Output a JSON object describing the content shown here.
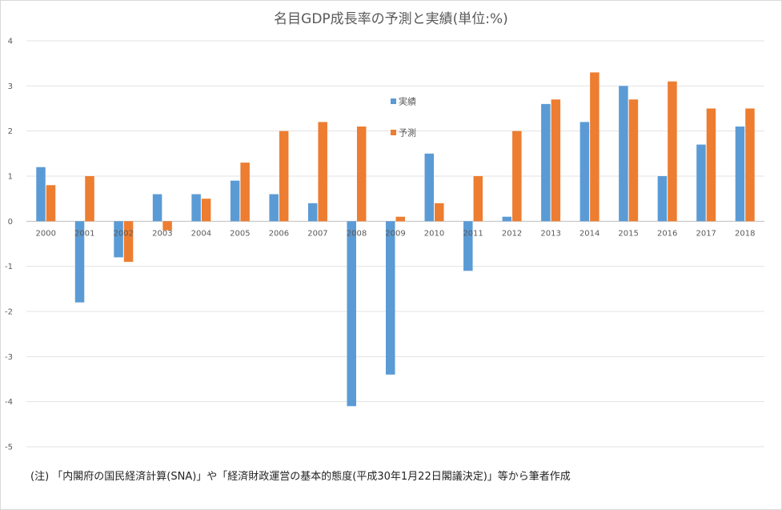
{
  "chart_data": {
    "type": "bar",
    "title": "名目GDP成長率の予測と実績(単位:%)",
    "categories": [
      "2000",
      "2001",
      "2002",
      "2003",
      "2004",
      "2005",
      "2006",
      "2007",
      "2008",
      "2009",
      "2010",
      "2011",
      "2012",
      "2013",
      "2014",
      "2015",
      "2016",
      "2017",
      "2018"
    ],
    "series": [
      {
        "name": "実績",
        "color": "#5b9bd5",
        "values": [
          1.2,
          -1.8,
          -0.8,
          0.6,
          0.6,
          0.9,
          0.6,
          0.4,
          -4.1,
          -3.4,
          1.5,
          -1.1,
          0.1,
          2.6,
          2.2,
          3.0,
          1.0,
          1.7,
          2.1
        ]
      },
      {
        "name": "予測",
        "color": "#ed7d31",
        "values": [
          0.8,
          1.0,
          -0.9,
          -0.2,
          0.5,
          1.3,
          2.0,
          2.2,
          2.1,
          0.1,
          0.4,
          1.0,
          2.0,
          2.7,
          3.3,
          2.7,
          3.1,
          2.5,
          2.5
        ]
      }
    ],
    "ylim": [
      -5,
      4
    ],
    "yticks": [
      -5,
      -4,
      -3,
      -2,
      -1,
      0,
      1,
      2,
      3,
      4
    ],
    "grid": true,
    "legend_position": "inside-center"
  },
  "note": "(注) 「内閣府の国民経済計算(SNA)」や「経済財政運営の基本的態度(平成30年1月22日閣議決定)」等から筆者作成"
}
